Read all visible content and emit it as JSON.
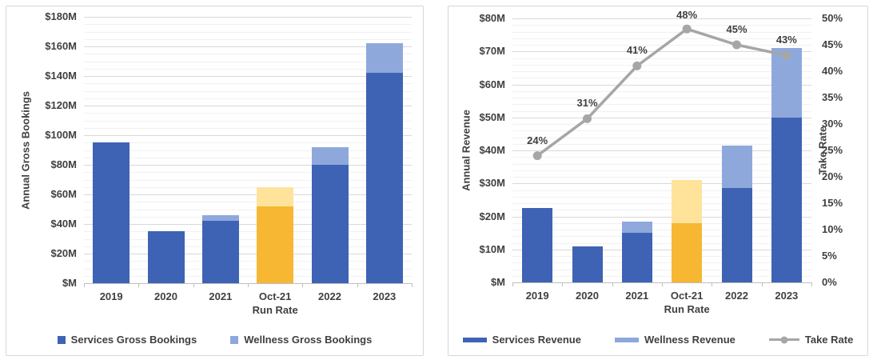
{
  "colors": {
    "services_blue": "#3e63b4",
    "wellness_blue": "#8fa8dc",
    "runrate_orange": "#f7b733",
    "runrate_yellow": "#ffe39b",
    "take_rate_gray": "#a6a6a6",
    "text_gray": "#404040",
    "gridline_major": "#d9d9d9",
    "gridline_minor": "#f1f1f1"
  },
  "chart_data": [
    {
      "type": "bar",
      "stacked": true,
      "title": "",
      "xlabel": "",
      "ylabel": "Annual Gross Bookings",
      "ylim": [
        0,
        180
      ],
      "ytick_step": 20,
      "minor_step": 5,
      "grid": true,
      "legend_position": "bottom",
      "legend_marker": "square",
      "ytick_labels": [
        "$M",
        "$20M",
        "$40M",
        "$60M",
        "$80M",
        "$100M",
        "$120M",
        "$140M",
        "$160M",
        "$180M"
      ],
      "categories": [
        [
          "2019"
        ],
        [
          "2020"
        ],
        [
          "2021"
        ],
        [
          "Oct-21",
          "Run Rate"
        ],
        [
          "2022"
        ],
        [
          "2023"
        ]
      ],
      "series": [
        {
          "name": "Services Gross Bookings",
          "color": "#3e63b4",
          "values": [
            95,
            35,
            42,
            52,
            80,
            142
          ],
          "point_colors": [
            null,
            null,
            null,
            "#f7b733",
            null,
            null
          ]
        },
        {
          "name": "Wellness Gross Bookings",
          "color": "#8fa8dc",
          "values": [
            0,
            0,
            4,
            13,
            12,
            20
          ],
          "point_colors": [
            null,
            null,
            null,
            "#ffe39b",
            null,
            null
          ]
        }
      ]
    },
    {
      "type": "bar+line",
      "stacked": true,
      "title": "",
      "xlabel": "",
      "ylabel": "Annual Revenue",
      "y2label": "Take Rate",
      "ylim": [
        0,
        80
      ],
      "ytick_step": 10,
      "minor_step": 2,
      "y2lim": [
        0,
        50
      ],
      "y2tick_step": 5,
      "grid": true,
      "legend_position": "bottom",
      "legend_marker": "bar",
      "ytick_labels": [
        "$M",
        "$10M",
        "$20M",
        "$30M",
        "$40M",
        "$50M",
        "$60M",
        "$70M",
        "$80M"
      ],
      "y2tick_labels": [
        "0%",
        "5%",
        "10%",
        "15%",
        "20%",
        "25%",
        "30%",
        "35%",
        "40%",
        "45%",
        "50%"
      ],
      "categories": [
        [
          "2019"
        ],
        [
          "2020"
        ],
        [
          "2021"
        ],
        [
          "Oct-21",
          "Run Rate"
        ],
        [
          "2022"
        ],
        [
          "2023"
        ]
      ],
      "series": [
        {
          "name": "Services Revenue",
          "color": "#3e63b4",
          "values": [
            22.5,
            11,
            15,
            18,
            28.5,
            50
          ],
          "point_colors": [
            null,
            null,
            null,
            "#f7b733",
            null,
            null
          ]
        },
        {
          "name": "Wellness Revenue",
          "color": "#8fa8dc",
          "values": [
            0,
            0,
            3.5,
            13,
            13,
            21
          ],
          "point_colors": [
            null,
            null,
            null,
            "#ffe39b",
            null,
            null
          ]
        }
      ],
      "line_series": {
        "name": "Take Rate",
        "color": "#a6a6a6",
        "values": [
          24,
          31,
          41,
          48,
          45,
          43
        ],
        "labels": [
          "24%",
          "31%",
          "41%",
          "48%",
          "45%",
          "43%"
        ]
      }
    }
  ]
}
